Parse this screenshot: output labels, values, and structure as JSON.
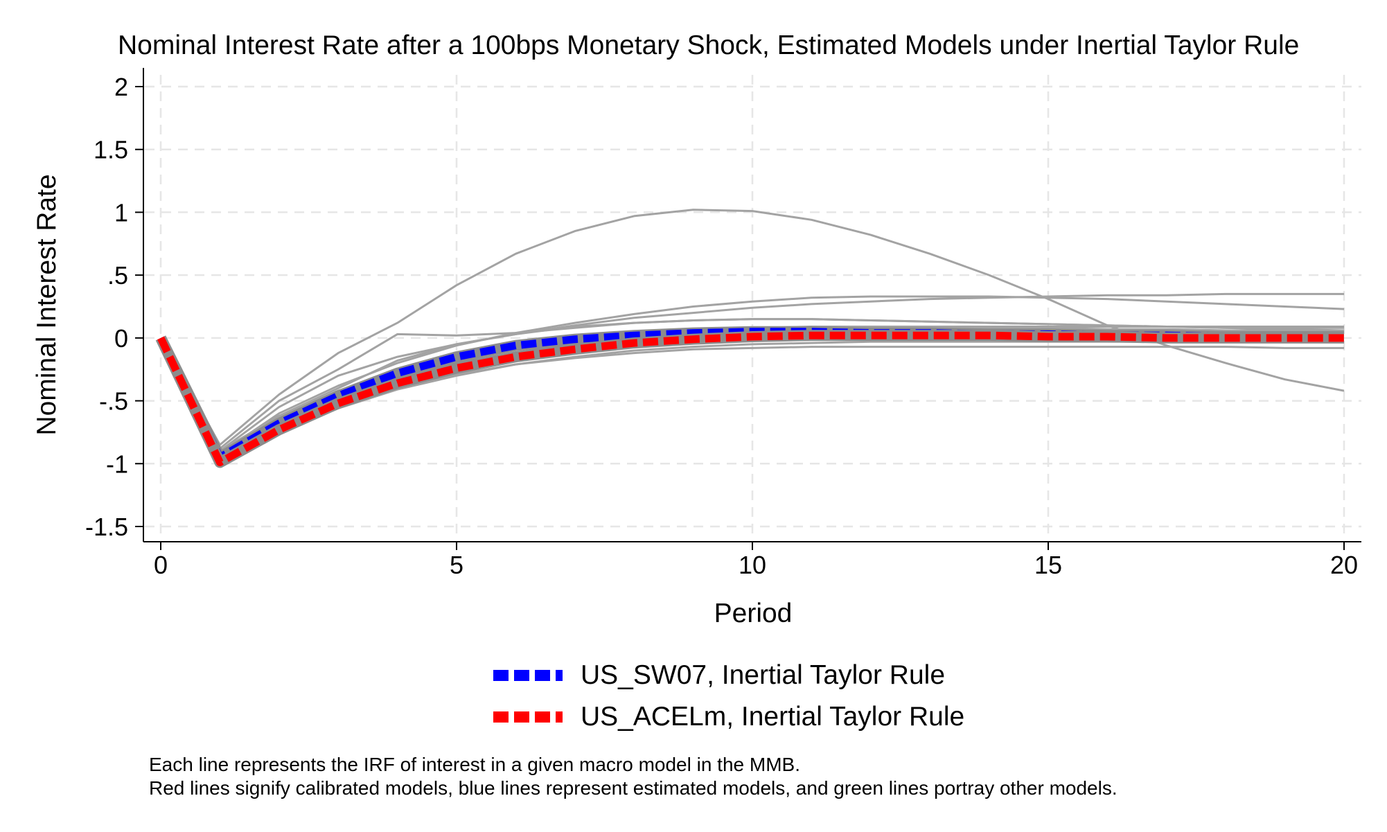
{
  "chart_data": {
    "type": "line",
    "title": "Nominal Interest Rate after a 100bps Monetary Shock, Estimated Models under Inertial Taylor Rule",
    "xlabel": "Period",
    "ylabel": "Nominal Interest Rate",
    "xlim": [
      0,
      20
    ],
    "ylim": [
      -1.5,
      2
    ],
    "xticks": [
      0,
      5,
      10,
      15,
      20
    ],
    "yticks": [
      2,
      1.5,
      1,
      0.5,
      0,
      -0.5,
      -1,
      -1.5
    ],
    "xtick_labels": [
      "0",
      "5",
      "10",
      "15",
      "20"
    ],
    "ytick_labels": [
      "2",
      "1.5",
      "1",
      ".5",
      "0",
      "-.5",
      "-1",
      "-1.5"
    ],
    "grid": true,
    "x": [
      0,
      1,
      2,
      3,
      4,
      5,
      6,
      7,
      8,
      9,
      10,
      11,
      12,
      13,
      14,
      15,
      16,
      17,
      18,
      19,
      20
    ],
    "background_series": [
      [
        0,
        -0.85,
        -0.45,
        -0.12,
        0.12,
        0.42,
        0.67,
        0.85,
        0.97,
        1.02,
        1.01,
        0.94,
        0.82,
        0.67,
        0.5,
        0.31,
        0.1,
        -0.06,
        -0.2,
        -0.33,
        -0.42
      ],
      [
        0,
        -0.9,
        -0.55,
        -0.3,
        -0.15,
        -0.05,
        0.03,
        0.1,
        0.16,
        0.2,
        0.24,
        0.27,
        0.29,
        0.31,
        0.32,
        0.33,
        0.34,
        0.34,
        0.35,
        0.35,
        0.35
      ],
      [
        0,
        -0.92,
        -0.6,
        -0.38,
        -0.2,
        -0.06,
        0.04,
        0.12,
        0.19,
        0.25,
        0.29,
        0.32,
        0.33,
        0.33,
        0.33,
        0.32,
        0.31,
        0.29,
        0.27,
        0.25,
        0.23
      ],
      [
        0,
        -0.88,
        -0.5,
        -0.25,
        0.03,
        0.02,
        0.04,
        0.08,
        0.12,
        0.14,
        0.15,
        0.15,
        0.14,
        0.13,
        0.12,
        0.11,
        0.1,
        0.09,
        0.08,
        0.07,
        0.06
      ],
      [
        0,
        -0.9,
        -0.62,
        -0.4,
        -0.18,
        -0.05,
        0.03,
        0.09,
        0.12,
        0.14,
        0.15,
        0.15,
        0.14,
        0.13,
        0.12,
        0.11,
        0.1,
        0.09,
        0.08,
        0.08,
        0.08
      ],
      [
        0,
        -0.95,
        -0.65,
        -0.44,
        -0.27,
        -0.14,
        -0.06,
        0.0,
        0.04,
        0.06,
        0.08,
        0.09,
        0.09,
        0.09,
        0.08,
        0.08,
        0.07,
        0.07,
        0.06,
        0.06,
        0.06
      ],
      [
        0,
        -0.97,
        -0.7,
        -0.5,
        -0.34,
        -0.22,
        -0.13,
        -0.06,
        -0.02,
        0.01,
        0.03,
        0.04,
        0.05,
        0.05,
        0.05,
        0.05,
        0.04,
        0.04,
        0.04,
        0.04,
        0.04
      ],
      [
        0,
        -0.99,
        -0.75,
        -0.56,
        -0.41,
        -0.3,
        -0.21,
        -0.15,
        -0.1,
        -0.07,
        -0.05,
        -0.04,
        -0.03,
        -0.03,
        -0.03,
        -0.03,
        -0.03,
        -0.03,
        -0.03,
        -0.03,
        -0.03
      ],
      [
        0,
        -0.96,
        -0.72,
        -0.54,
        -0.4,
        -0.29,
        -0.21,
        -0.16,
        -0.12,
        -0.09,
        -0.08,
        -0.07,
        -0.07,
        -0.07,
        -0.07,
        -0.07,
        -0.07,
        -0.07,
        -0.07,
        -0.08,
        -0.08
      ],
      [
        0,
        -0.93,
        -0.63,
        -0.42,
        -0.28,
        -0.17,
        -0.09,
        -0.03,
        0.02,
        0.05,
        0.07,
        0.08,
        0.09,
        0.09,
        0.09,
        0.09,
        0.09,
        0.09,
        0.09,
        0.09,
        0.09
      ],
      [
        0,
        -0.94,
        -0.66,
        -0.46,
        -0.31,
        -0.2,
        -0.12,
        -0.06,
        -0.02,
        0.01,
        0.02,
        0.03,
        0.03,
        0.03,
        0.02,
        0.02,
        0.02,
        0.01,
        0.01,
        0.01,
        0.01
      ]
    ],
    "background_color": "#a3a3a3",
    "series": [
      {
        "name": "US_SW07, Inertial Taylor Rule",
        "color": "#0000ff",
        "values": [
          0,
          -0.95,
          -0.68,
          -0.46,
          -0.28,
          -0.15,
          -0.06,
          -0.01,
          0.02,
          0.04,
          0.05,
          0.05,
          0.04,
          0.04,
          0.03,
          0.03,
          0.02,
          0.02,
          0.01,
          0.01,
          0.01
        ]
      },
      {
        "name": "US_ACELm, Inertial Taylor Rule",
        "color": "#ff0000",
        "values": [
          0,
          -0.99,
          -0.73,
          -0.52,
          -0.36,
          -0.24,
          -0.15,
          -0.09,
          -0.04,
          -0.01,
          0.01,
          0.02,
          0.02,
          0.02,
          0.02,
          0.01,
          0.01,
          0.0,
          0.0,
          0.0,
          0.0
        ]
      }
    ],
    "legend_position": "bottom"
  },
  "notes": [
    "Each line represents the IRF of interest in a given macro model in the MMB.",
    "Red lines signify calibrated models, blue lines represent estimated models, and green lines portray other models."
  ]
}
